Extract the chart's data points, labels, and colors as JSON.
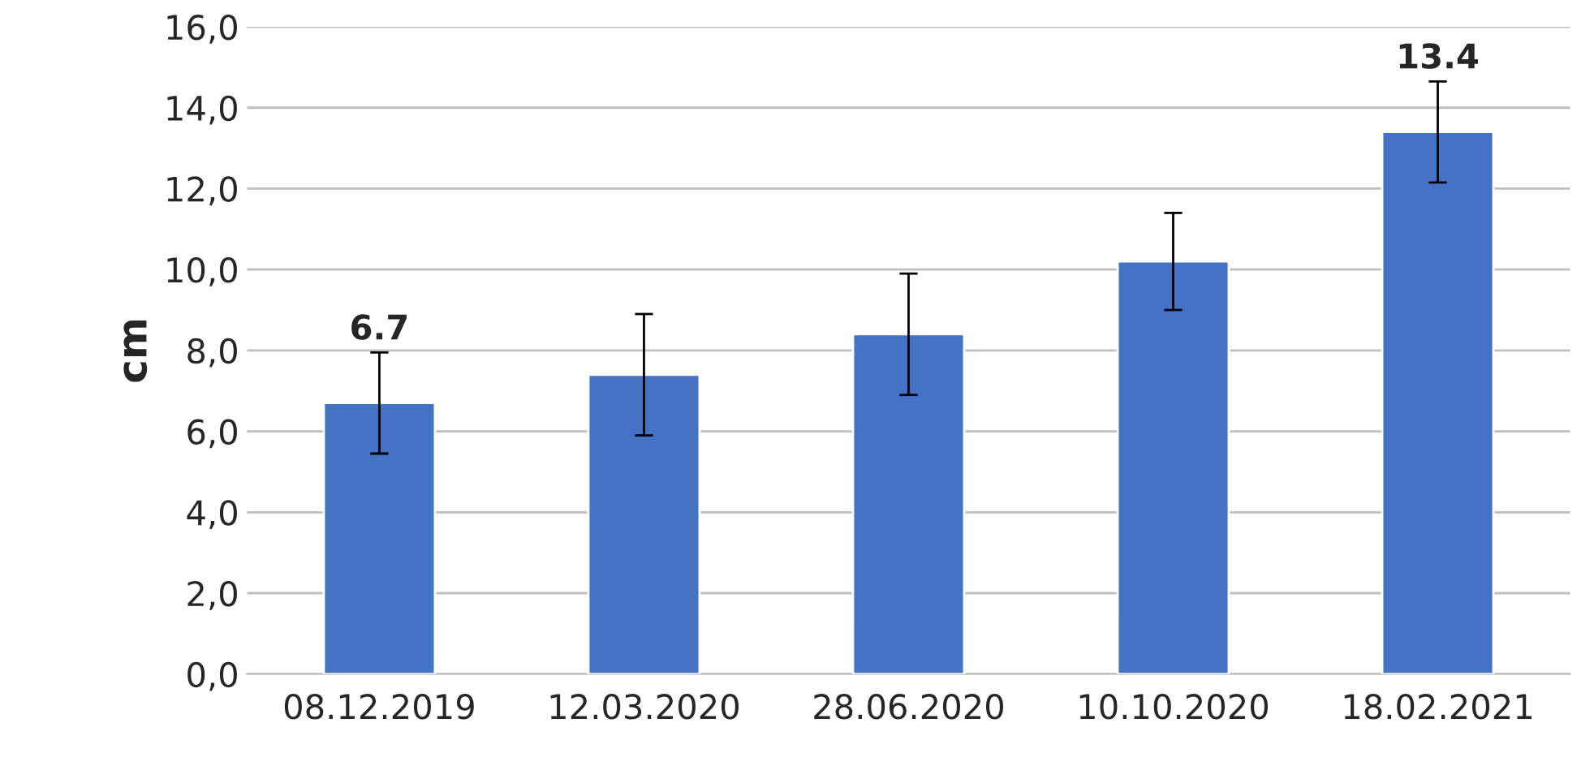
{
  "chart_data": {
    "type": "bar",
    "ylabel": "cm",
    "categories": [
      "08.12.2019",
      "12.03.2020",
      "28.06.2020",
      "10.10.2020",
      "18.02.2021"
    ],
    "values": [
      6.7,
      7.4,
      8.4,
      10.2,
      13.4
    ],
    "errors": [
      1.25,
      1.5,
      1.5,
      1.2,
      1.25
    ],
    "value_labels": [
      "6.7",
      null,
      null,
      null,
      "13.4"
    ],
    "color": "#4472c4",
    "ylim": [
      0,
      16
    ],
    "yticks": [
      {
        "value": 0,
        "label": "0,0"
      },
      {
        "value": 2,
        "label": "2,0"
      },
      {
        "value": 4,
        "label": "4,0"
      },
      {
        "value": 6,
        "label": "6,0"
      },
      {
        "value": 8,
        "label": "8,0"
      },
      {
        "value": 10,
        "label": "10,0"
      },
      {
        "value": 12,
        "label": "12,0"
      },
      {
        "value": 14,
        "label": "14,0"
      },
      {
        "value": 16,
        "label": "16,0"
      }
    ],
    "grid": "y"
  }
}
